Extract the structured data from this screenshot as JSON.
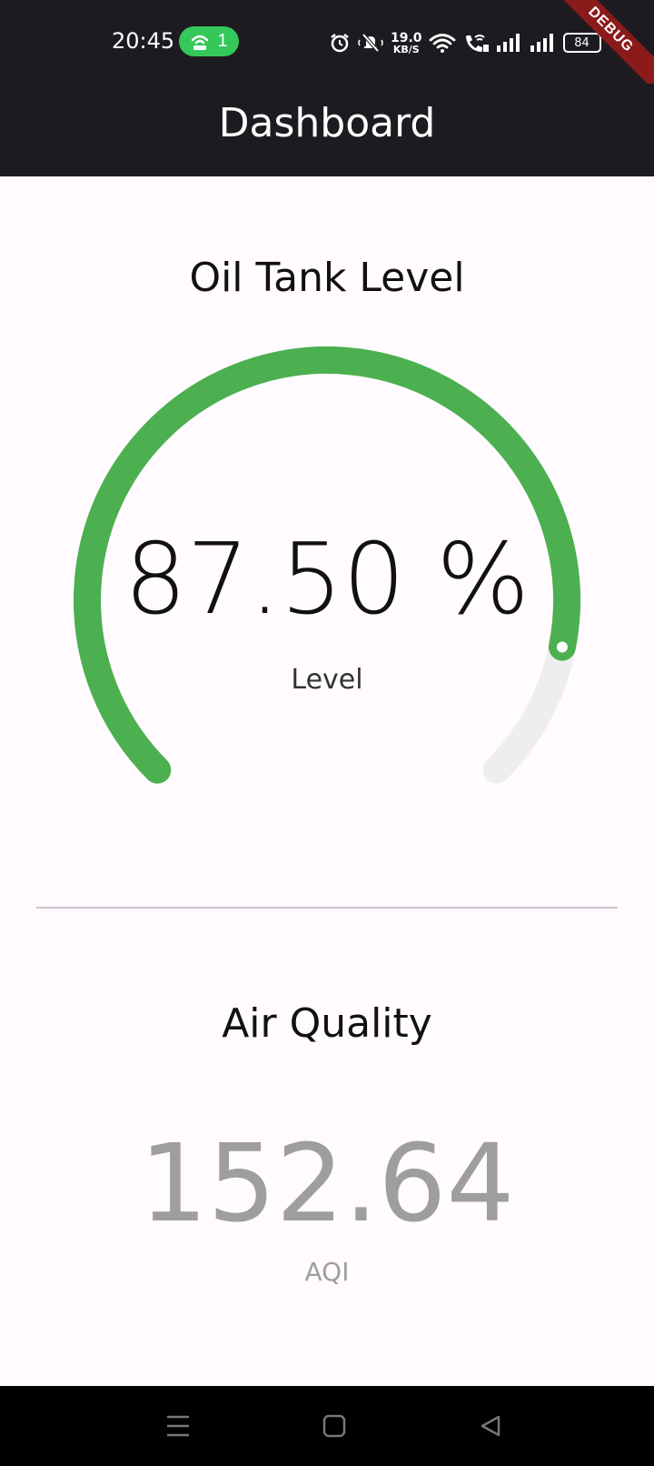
{
  "status_bar": {
    "time": "20:45",
    "hotspot_count": "1",
    "speed_value": "19.0",
    "speed_unit": "KB/S",
    "battery": "84",
    "icons": [
      "alarm-icon",
      "mute-icon",
      "wifi-icon",
      "wifi-call-icon",
      "signal-icon",
      "signal-icon"
    ]
  },
  "debug_banner": "DEBUG",
  "app_bar": {
    "title": "Dashboard"
  },
  "oil_tank": {
    "title": "Oil Tank Level",
    "value_text": "87.50 %",
    "label": "Level",
    "level_fraction": 0.875,
    "colors": {
      "fill": "#4caf50",
      "track": "#eeeeee"
    }
  },
  "air_quality": {
    "title": "Air Quality",
    "value": "152.64",
    "unit": "AQI"
  },
  "nav_bar": {
    "icons": [
      "menu-icon",
      "home-icon",
      "back-icon"
    ]
  }
}
